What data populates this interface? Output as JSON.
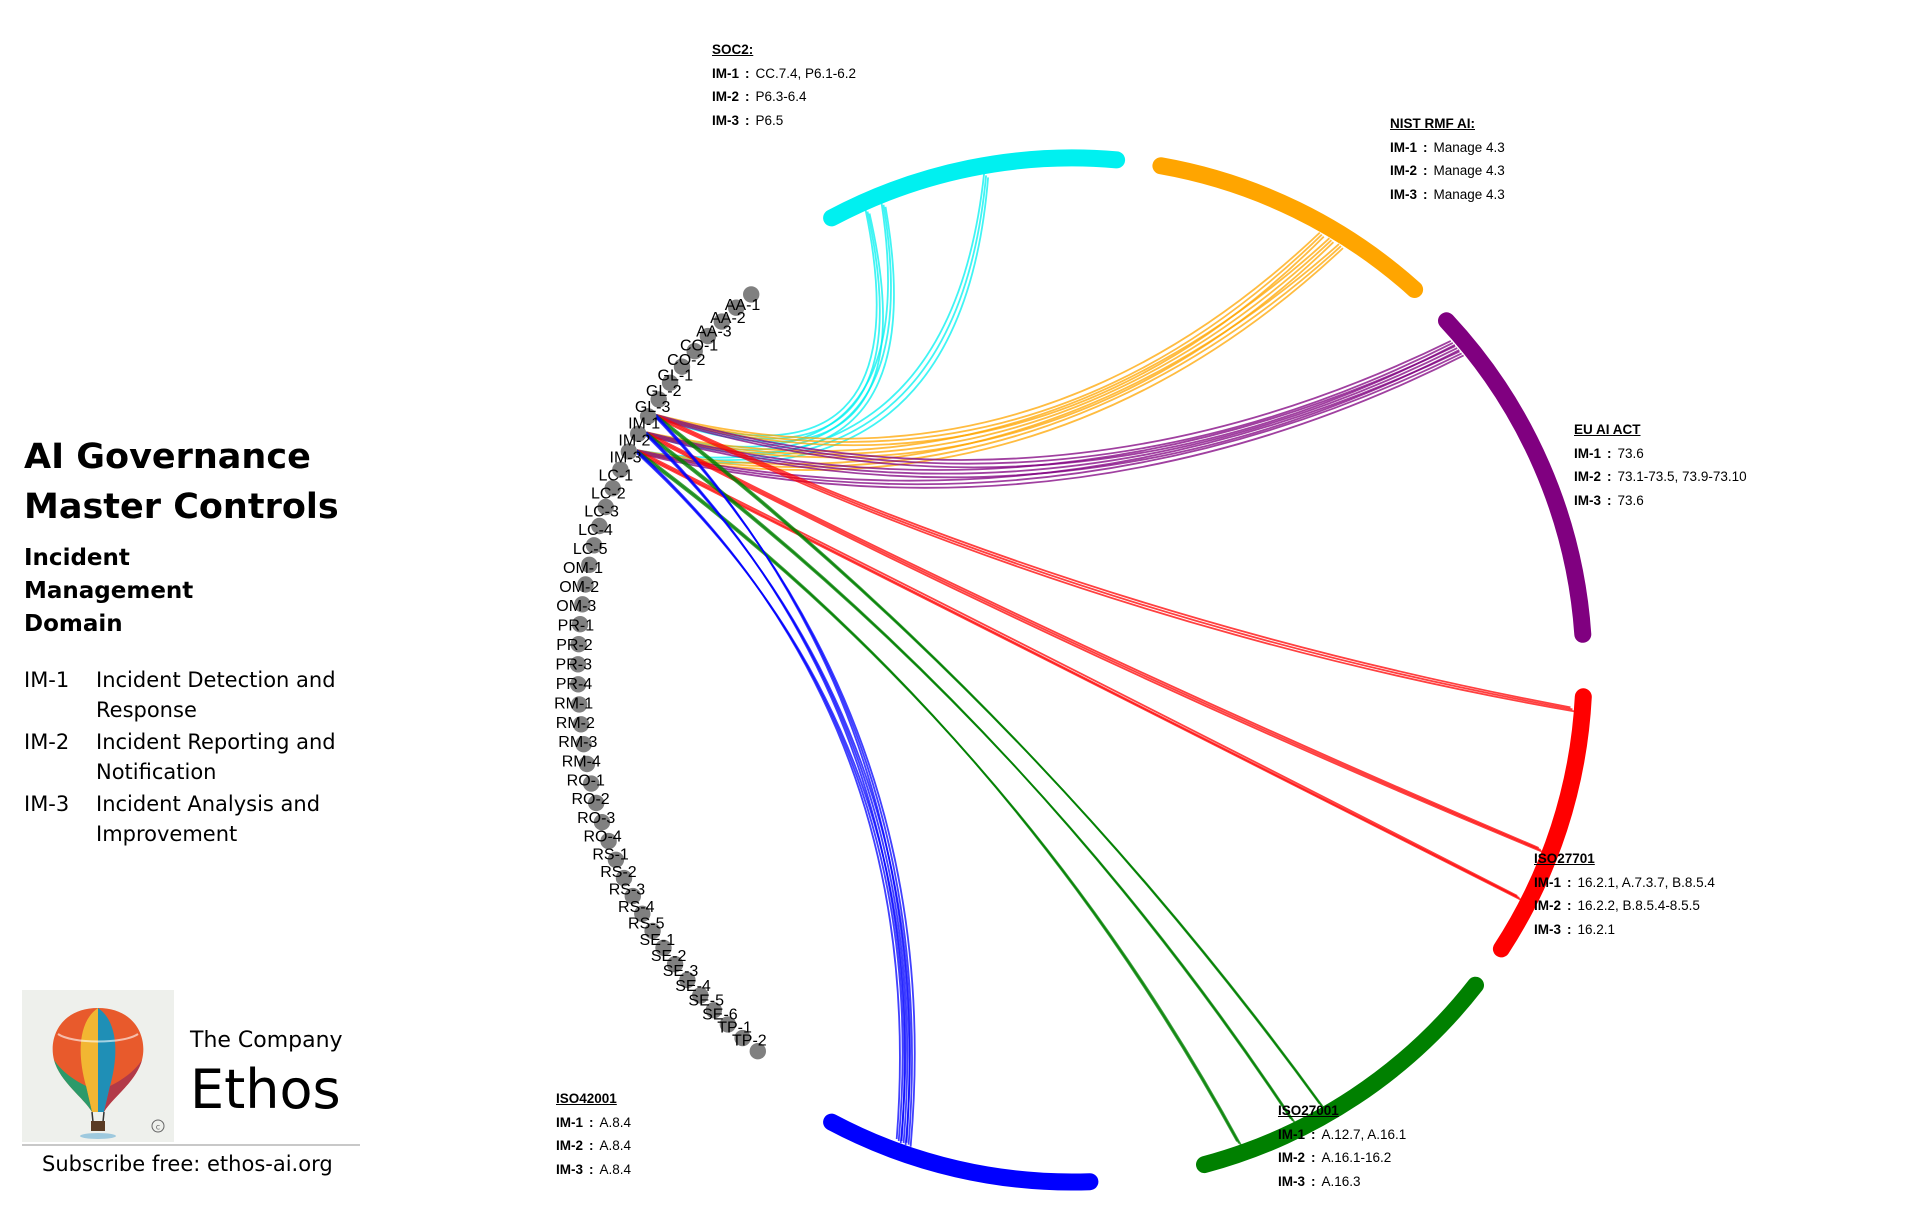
{
  "title_lines": [
    "AI Governance",
    "Master Controls"
  ],
  "domain_lines": [
    "Incident",
    "Management",
    "Domain"
  ],
  "legend": [
    {
      "code": "IM-1",
      "description": "Incident Detection and Response"
    },
    {
      "code": "IM-2",
      "description": "Incident Reporting and Notification"
    },
    {
      "code": "IM-3",
      "description": "Incident Analysis and Improvement"
    }
  ],
  "controls": [
    "AA-1",
    "AA-2",
    "AA-3",
    "CO-1",
    "CO-2",
    "GL-1",
    "GL-2",
    "GL-3",
    "IM-1",
    "IM-2",
    "IM-3",
    "LC-1",
    "LC-2",
    "LC-3",
    "LC-4",
    "LC-5",
    "OM-1",
    "OM-2",
    "OM-3",
    "PR-1",
    "PR-2",
    "PR-3",
    "PR-4",
    "RM-1",
    "RM-2",
    "RM-3",
    "RM-4",
    "RO-1",
    "RO-2",
    "RO-3",
    "RO-4",
    "RS-1",
    "RS-2",
    "RS-3",
    "RS-4",
    "RS-5",
    "SE-1",
    "SE-2",
    "SE-3",
    "SE-4",
    "SE-5",
    "SE-6",
    "TP-1",
    "TP-2"
  ],
  "frameworks": [
    {
      "id": "soc2",
      "name": "SOC2:",
      "color": "#00f0f0",
      "mappings": [
        {
          "control": "IM-1",
          "ref": "CC.7.4,  P6.1-6.2"
        },
        {
          "control": "IM-2",
          "ref": "P6.3-6.4"
        },
        {
          "control": "IM-3",
          "ref": "P6.5"
        }
      ]
    },
    {
      "id": "nist",
      "name": "NIST RMF AI:",
      "color": "#ffa500",
      "mappings": [
        {
          "control": "IM-1",
          "ref": "Manage 4.3"
        },
        {
          "control": "IM-2",
          "ref": "Manage 4.3"
        },
        {
          "control": "IM-3",
          "ref": "Manage 4.3"
        }
      ]
    },
    {
      "id": "euai",
      "name": "EU AI ACT",
      "color": "#800080",
      "mappings": [
        {
          "control": "IM-1",
          "ref": "73.6"
        },
        {
          "control": "IM-2",
          "ref": "73.1-73.5,  73.9-73.10"
        },
        {
          "control": "IM-3",
          "ref": "73.6"
        }
      ]
    },
    {
      "id": "iso27701",
      "name": "ISO27701",
      "color": "#ff0000",
      "mappings": [
        {
          "control": "IM-1",
          "ref": "16.2.1, A.7.3.7, B.8.5.4"
        },
        {
          "control": "IM-2",
          "ref": "16.2.2,  B.8.5.4-8.5.5"
        },
        {
          "control": "IM-3",
          "ref": "16.2.1"
        }
      ]
    },
    {
      "id": "iso27001",
      "name": "ISO27001",
      "color": "#008000",
      "mappings": [
        {
          "control": "IM-1",
          "ref": "A.12.7,  A.16.1"
        },
        {
          "control": "IM-2",
          "ref": "A.16.1-16.2"
        },
        {
          "control": "IM-3",
          "ref": "A.16.3"
        }
      ]
    },
    {
      "id": "iso42001",
      "name": "ISO42001",
      "color": "#0000ff",
      "mappings": [
        {
          "control": "IM-1",
          "ref": "A.8.4"
        },
        {
          "control": "IM-2",
          "ref": "A.8.4"
        },
        {
          "control": "IM-3",
          "ref": "A.8.4"
        }
      ]
    }
  ],
  "colors": {
    "node": "#808080"
  },
  "company": {
    "small": "The Company",
    "big": "Ethos",
    "subscribe": "Subscribe free: ethos-ai.org"
  },
  "logo_icon": "hot-air-balloon-logo"
}
